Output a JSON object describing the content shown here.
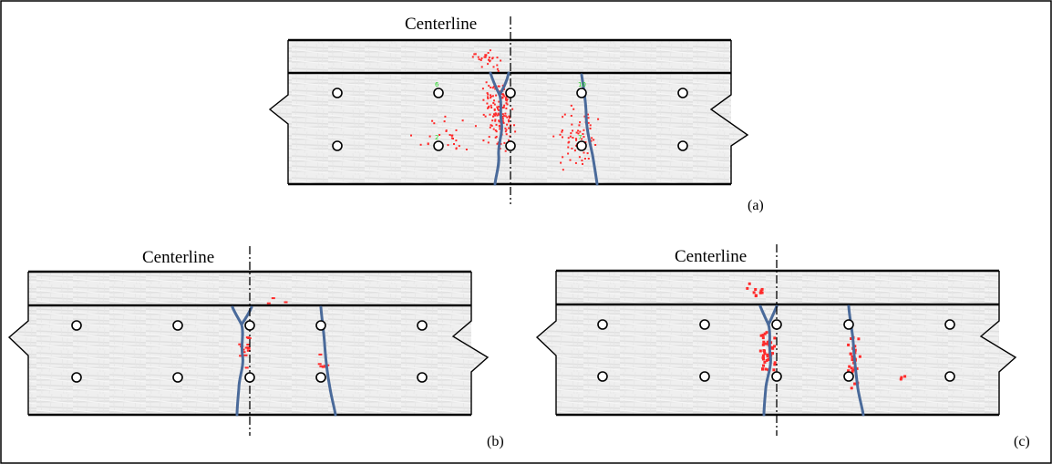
{
  "figure": {
    "panels": [
      {
        "id": "a",
        "tag": "(a)",
        "centerline_label": "Centerline",
        "sensor_labels": [
          "6",
          "10",
          "2",
          "7"
        ]
      },
      {
        "id": "b",
        "tag": "(b)",
        "centerline_label": "Centerline"
      },
      {
        "id": "c",
        "tag": "(c)",
        "centerline_label": "Centerline"
      }
    ],
    "colors": {
      "crack": "#4a6a9a",
      "acoustic_event": "#ff2a2a",
      "sensor_label": "#29d629"
    },
    "icons": {
      "sensor": "open-circle",
      "acoustic_event": "red-dot",
      "break_line": "zigzag"
    }
  }
}
